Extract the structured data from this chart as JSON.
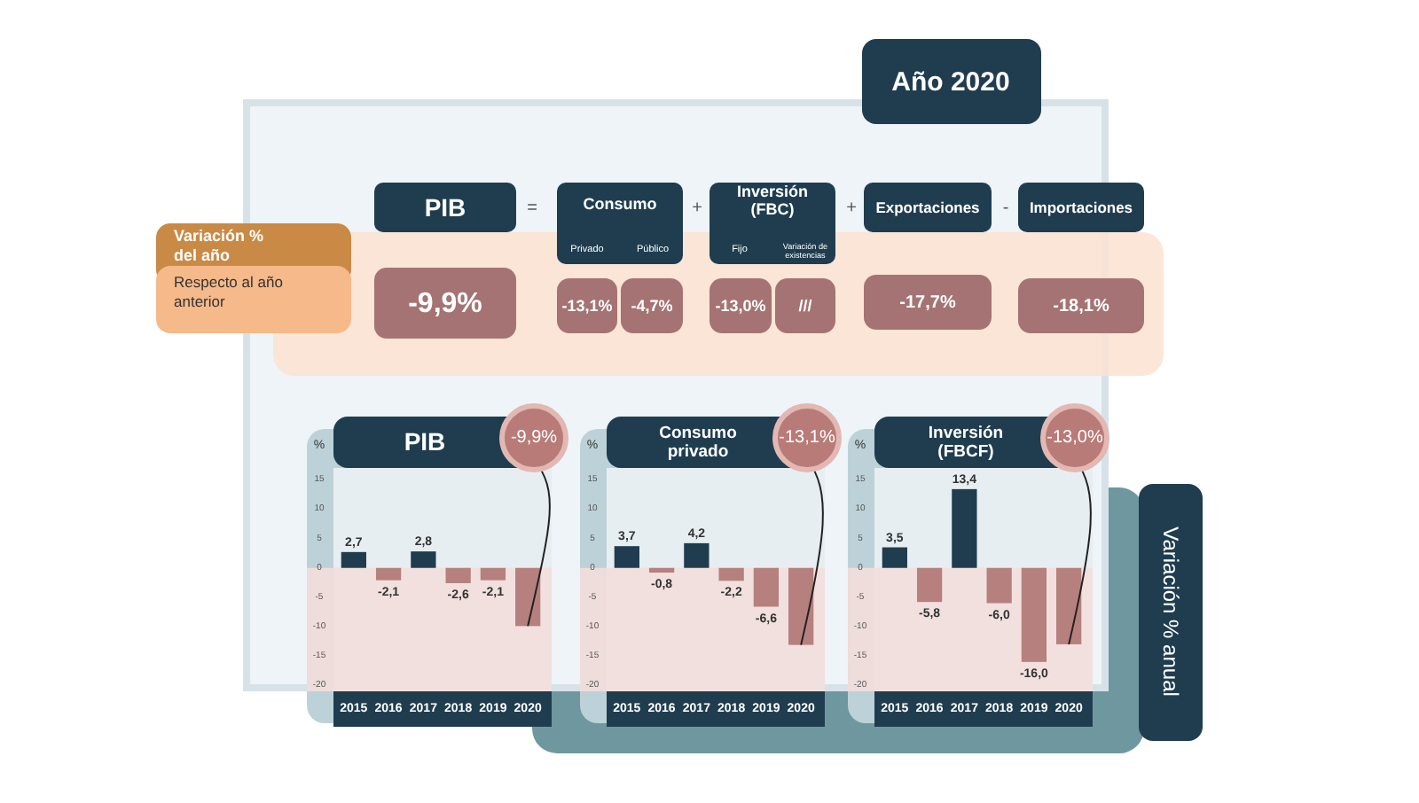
{
  "chart_data": [
    {
      "type": "other",
      "title": "Año 2020",
      "annotations": [
        "PIB",
        "=",
        "Consumo",
        "Privado",
        "Público",
        "+",
        "Inversión (FBC)",
        "Fijo",
        "Variación de existencias",
        "+",
        "Exportaciones",
        "-",
        "Importaciones",
        "Variación % del año",
        "Respecto al año anterior",
        "-9,9%",
        "-13,1%",
        "-4,7%",
        "-13,0%",
        "///",
        "-17,7%",
        "-18,1%"
      ]
    },
    {
      "type": "bar",
      "title": "PIB",
      "ylabel": "%",
      "categories": [
        "2015",
        "2016",
        "2017",
        "2018",
        "2019",
        "2020"
      ],
      "values": [
        2.7,
        -2.1,
        2.8,
        -2.6,
        -2.1,
        -9.9
      ],
      "colors": [
        "#1f3d4f",
        "#b5807d",
        "#1f3d4f",
        "#b5807d",
        "#b5807d",
        "#b5807d"
      ],
      "value_labels": [
        "2,7",
        "-2,1",
        "2,8",
        "-2,6",
        "-2,1",
        null
      ],
      "ylim": [
        -21,
        17
      ],
      "yticks": [
        15,
        10,
        5,
        0,
        -5,
        -10,
        -15,
        -20
      ],
      "bands": [
        {
          "axis": "y",
          "from": -21,
          "to": 0,
          "color": "#f3dedb"
        }
      ],
      "annotations": [
        {
          "text": "-9,9%",
          "x": "2020",
          "y": -9.9
        }
      ]
    },
    {
      "type": "bar",
      "title": "Consumo privado",
      "ylabel": "%",
      "categories": [
        "2015",
        "2016",
        "2017",
        "2018",
        "2019",
        "2020"
      ],
      "values": [
        3.7,
        -0.8,
        4.2,
        -2.2,
        -6.6,
        -13.1
      ],
      "colors": [
        "#1f3d4f",
        "#b5807d",
        "#1f3d4f",
        "#b5807d",
        "#b5807d",
        "#b5807d"
      ],
      "value_labels": [
        "3,7",
        "-0,8",
        "4,2",
        "-2,2",
        "-6,6",
        null
      ],
      "ylim": [
        -21,
        17
      ],
      "yticks": [
        15,
        10,
        5,
        0,
        -5,
        -10,
        -15,
        -20
      ],
      "bands": [
        {
          "axis": "y",
          "from": -21,
          "to": 0,
          "color": "#f3dedb"
        }
      ],
      "annotations": [
        {
          "text": "-13,1%",
          "x": "2020",
          "y": -13.1
        }
      ]
    },
    {
      "type": "bar",
      "title": "Inversión (FBCF)",
      "ylabel": "%",
      "categories": [
        "2015",
        "2016",
        "2017",
        "2018",
        "2019",
        "2020"
      ],
      "values": [
        3.5,
        -5.8,
        13.4,
        -6.0,
        -16.0,
        -13.0
      ],
      "colors": [
        "#1f3d4f",
        "#b5807d",
        "#1f3d4f",
        "#b5807d",
        "#b5807d",
        "#b5807d"
      ],
      "value_labels": [
        "3,5",
        "-5,8",
        "13,4",
        "-6,0",
        "-16,0",
        null
      ],
      "ylim": [
        -21,
        17
      ],
      "yticks": [
        15,
        10,
        5,
        0,
        -5,
        -10,
        -15,
        -20
      ],
      "bands": [
        {
          "axis": "y",
          "from": -21,
          "to": 0,
          "color": "#f3dedb"
        }
      ],
      "annotations": [
        {
          "text": "-13,0%",
          "x": "2020",
          "y": -13.0
        },
        "Variación % anual"
      ]
    }
  ]
}
